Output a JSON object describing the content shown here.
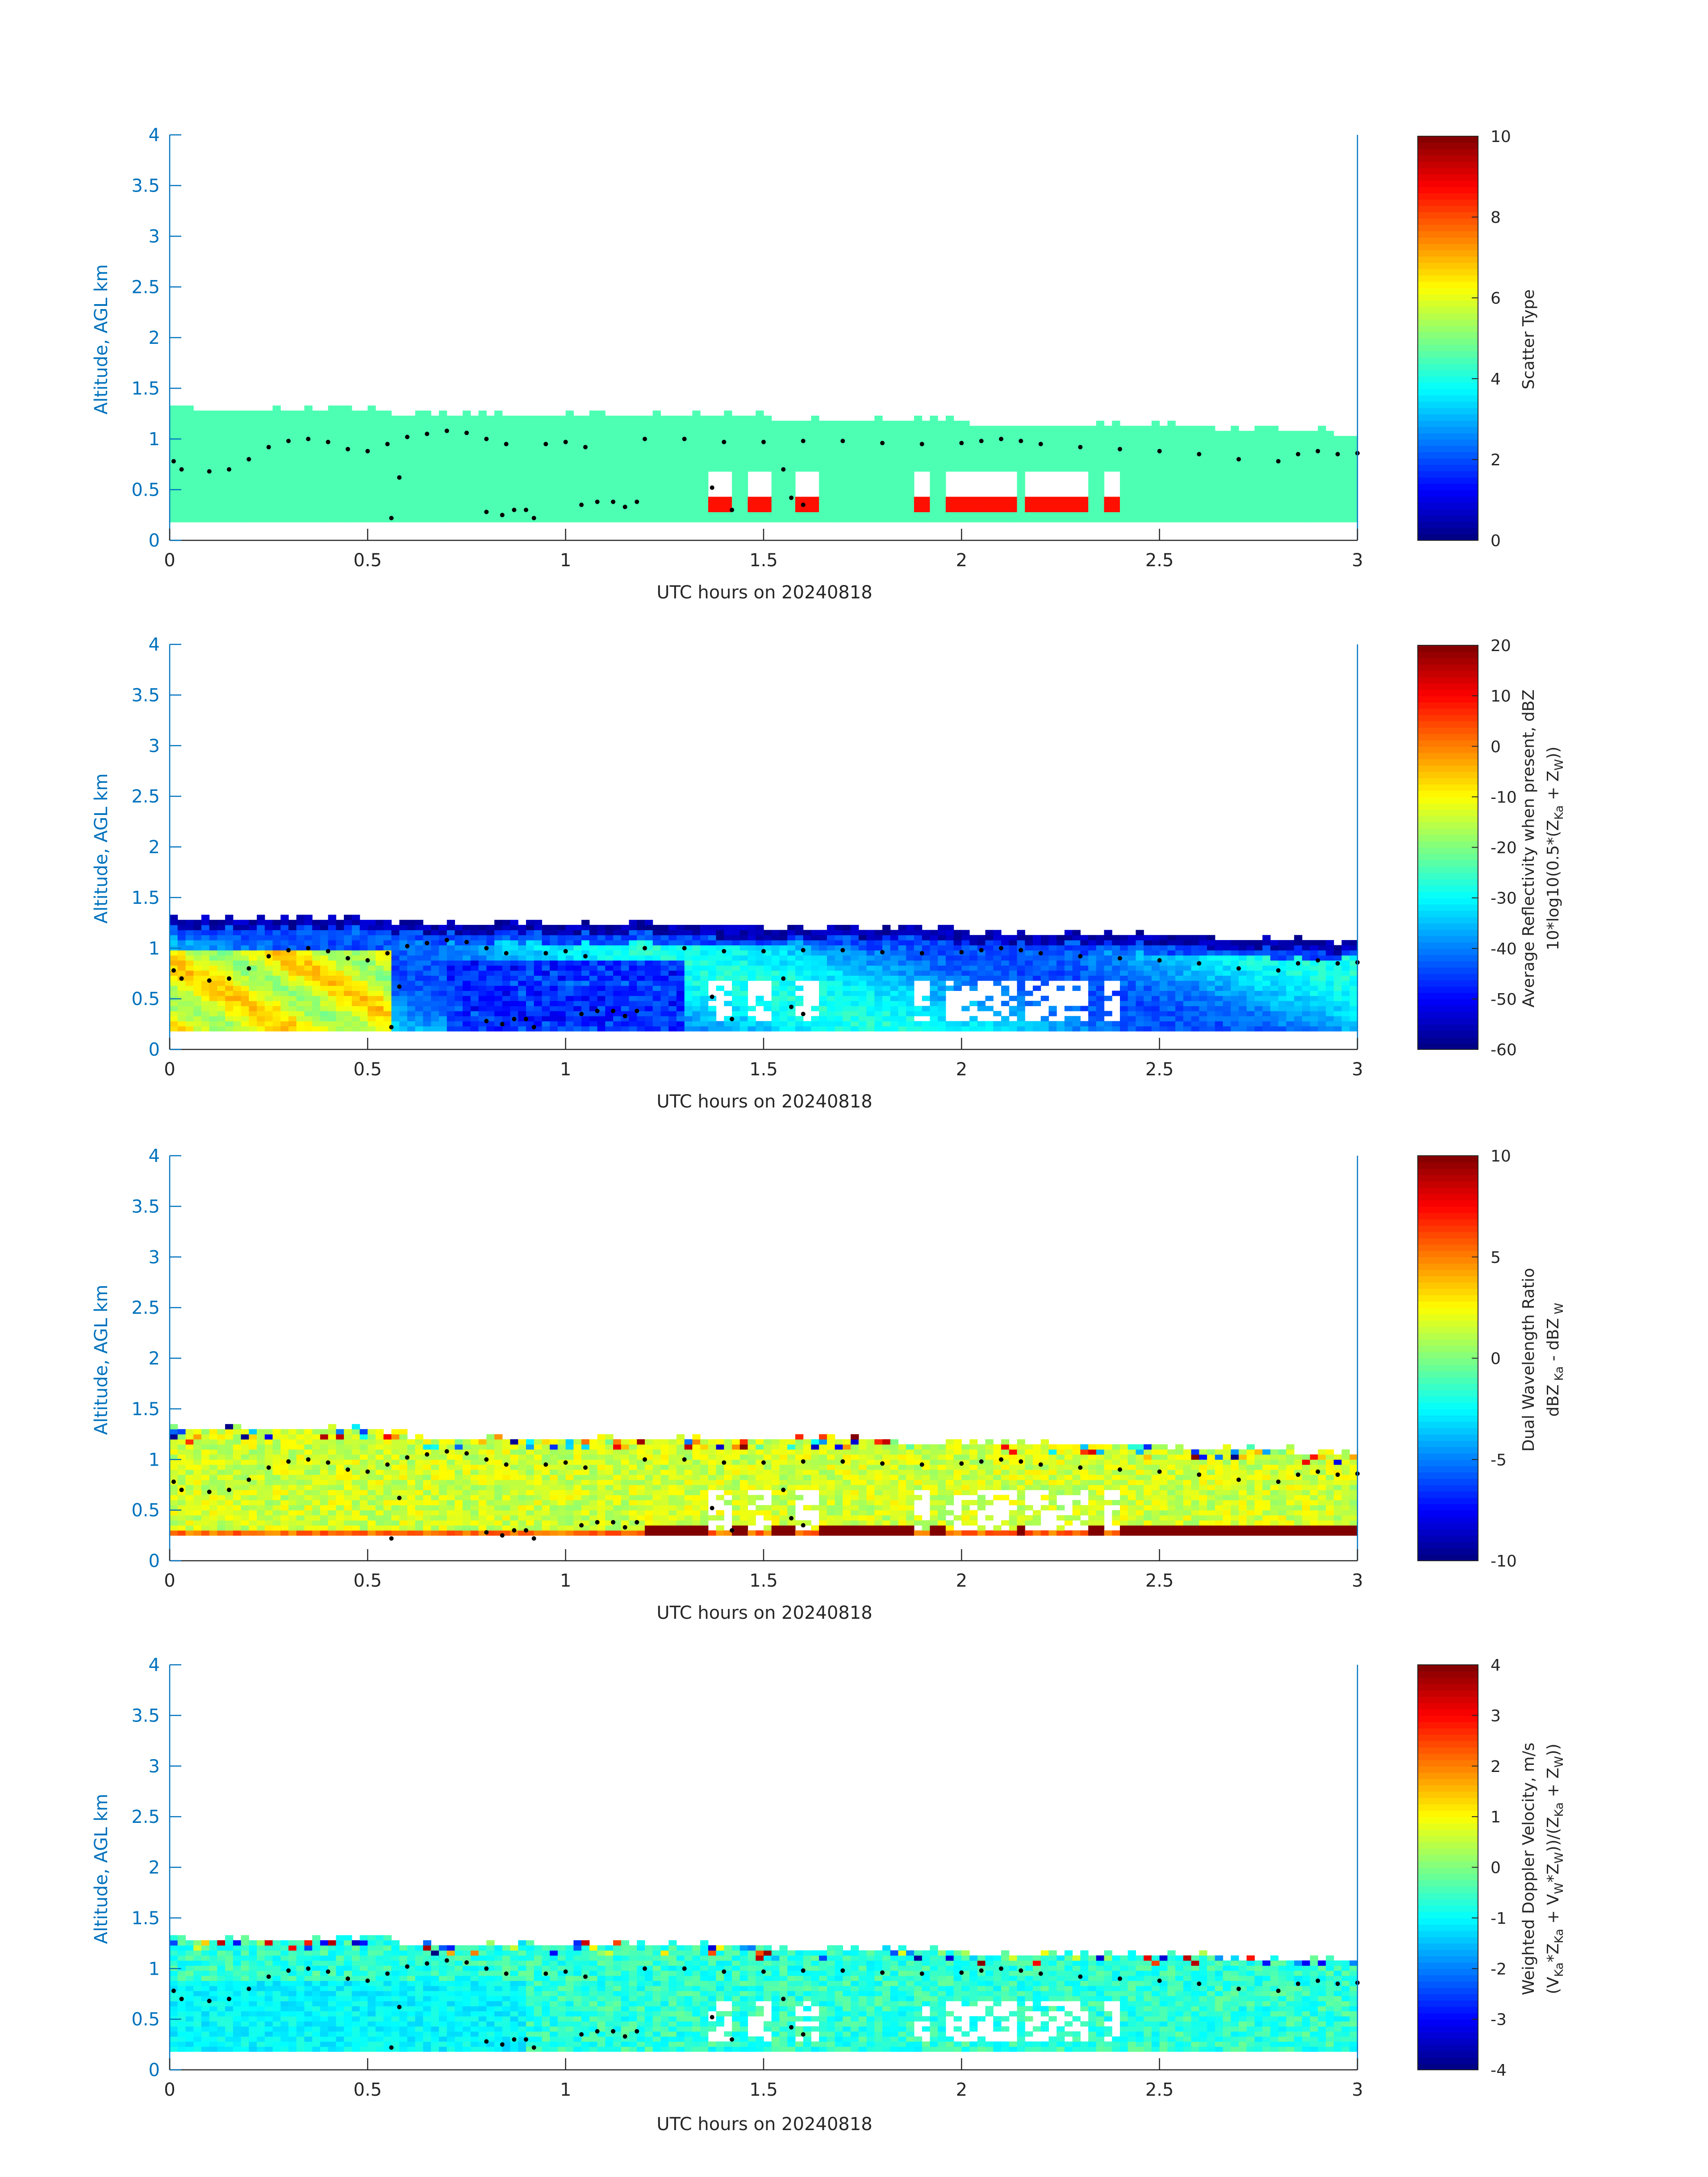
{
  "figure": {
    "xlabel": "UTC hours on 20240818",
    "ylabel": "Altitude, AGL km",
    "accent_color": "#0072BD"
  },
  "chart_data": [
    {
      "type": "heatmap",
      "xlabel": "UTC hours on 20240818",
      "ylabel": "Altitude, AGL km",
      "xlim": [
        0,
        3
      ],
      "ylim": [
        0,
        4
      ],
      "xticks": [
        "0",
        "0.5",
        "1",
        "1.5",
        "2",
        "2.5",
        "3"
      ],
      "yticks": [
        "0",
        "0.5",
        "1",
        "1.5",
        "2",
        "2.5",
        "3",
        "3.5",
        "4"
      ],
      "colorbar": {
        "label": "Scatter Type",
        "label2": "",
        "clim": [
          0,
          10
        ],
        "ticks": [
          "0",
          "2",
          "4",
          "6",
          "8",
          "10"
        ],
        "colormap": "jet"
      },
      "field": "scatter",
      "dominant_value": 4.5,
      "secondary_value": 8.6
    },
    {
      "type": "heatmap",
      "xlabel": "UTC hours on 20240818",
      "ylabel": "Altitude, AGL km",
      "xlim": [
        0,
        3
      ],
      "ylim": [
        0,
        4
      ],
      "xticks": [
        "0",
        "0.5",
        "1",
        "1.5",
        "2",
        "2.5",
        "3"
      ],
      "yticks": [
        "0",
        "0.5",
        "1",
        "1.5",
        "2",
        "2.5",
        "3",
        "3.5",
        "4"
      ],
      "colorbar": {
        "label": "Average Reflectivity when present, dBZ",
        "label2": "10*log10(0.5*(Zₖₐ + Zᴡ))",
        "clim": [
          -60,
          20
        ],
        "ticks": [
          "-60",
          "-50",
          "-40",
          "-30",
          "-20",
          "-10",
          "0",
          "10",
          "20"
        ],
        "colormap": "jet"
      },
      "field": "reflectivity"
    },
    {
      "type": "heatmap",
      "xlabel": "UTC hours on 20240818",
      "ylabel": "Altitude, AGL km",
      "xlim": [
        0,
        3
      ],
      "ylim": [
        0,
        4
      ],
      "xticks": [
        "0",
        "0.5",
        "1",
        "1.5",
        "2",
        "2.5",
        "3"
      ],
      "yticks": [
        "0",
        "0.5",
        "1",
        "1.5",
        "2",
        "2.5",
        "3",
        "3.5",
        "4"
      ],
      "colorbar": {
        "label": "Dual Wavelength Ratio",
        "label2": "dBZ Ka - dBZ W",
        "clim": [
          -10,
          10
        ],
        "ticks": [
          "-10",
          "-5",
          "0",
          "5",
          "10"
        ],
        "colormap": "jet"
      },
      "field": "dwr"
    },
    {
      "type": "heatmap",
      "xlabel": "UTC hours on 20240818",
      "ylabel": "Altitude, AGL km",
      "xlim": [
        0,
        3
      ],
      "ylim": [
        0,
        4
      ],
      "xticks": [
        "0",
        "0.5",
        "1",
        "1.5",
        "2",
        "2.5",
        "3"
      ],
      "yticks": [
        "0",
        "0.5",
        "1",
        "1.5",
        "2",
        "2.5",
        "3",
        "3.5",
        "4"
      ],
      "colorbar": {
        "label": "Weighted Doppler Velocity, m/s",
        "label2": "(VKa*ZKa + VW*ZW))/(ZKa + ZW))",
        "clim": [
          -4,
          4
        ],
        "ticks": [
          "-4",
          "-3",
          "-2",
          "-1",
          "0",
          "1",
          "2",
          "3",
          "4"
        ],
        "colormap": "jet"
      },
      "field": "velocity"
    }
  ],
  "cloud": {
    "base_km": 0.18,
    "top_km": [
      [
        0,
        1.25
      ],
      [
        0.5,
        1.28
      ],
      [
        0.6,
        1.2
      ],
      [
        1.0,
        1.2
      ],
      [
        1.5,
        1.18
      ],
      [
        2.0,
        1.13
      ],
      [
        2.5,
        1.1
      ],
      [
        2.8,
        1.06
      ],
      [
        3.0,
        1.02
      ]
    ],
    "gaps_x": [
      [
        1.36,
        1.42
      ],
      [
        1.46,
        1.52
      ],
      [
        1.58,
        1.64
      ],
      [
        1.88,
        1.92
      ],
      [
        1.96,
        2.14
      ],
      [
        2.16,
        2.32
      ],
      [
        2.36,
        2.39
      ]
    ]
  },
  "dots": {
    "main": [
      [
        0.01,
        0.78
      ],
      [
        0.03,
        0.7
      ],
      [
        0.1,
        0.68
      ],
      [
        0.15,
        0.7
      ],
      [
        0.2,
        0.8
      ],
      [
        0.25,
        0.92
      ],
      [
        0.3,
        0.98
      ],
      [
        0.35,
        1.0
      ],
      [
        0.4,
        0.97
      ],
      [
        0.45,
        0.9
      ],
      [
        0.5,
        0.88
      ],
      [
        0.55,
        0.95
      ],
      [
        0.6,
        1.02
      ],
      [
        0.65,
        1.05
      ],
      [
        0.7,
        1.08
      ],
      [
        0.75,
        1.06
      ],
      [
        0.8,
        1.0
      ],
      [
        0.85,
        0.95
      ],
      [
        0.95,
        0.95
      ],
      [
        1.0,
        0.97
      ],
      [
        1.05,
        0.92
      ],
      [
        1.2,
        1.0
      ],
      [
        1.3,
        1.0
      ],
      [
        1.4,
        0.97
      ],
      [
        1.5,
        0.97
      ],
      [
        1.6,
        0.98
      ],
      [
        1.7,
        0.98
      ],
      [
        1.8,
        0.96
      ],
      [
        1.9,
        0.95
      ],
      [
        2.0,
        0.96
      ],
      [
        2.05,
        0.98
      ],
      [
        2.1,
        1.0
      ],
      [
        2.15,
        0.98
      ],
      [
        2.2,
        0.95
      ],
      [
        2.3,
        0.92
      ],
      [
        2.4,
        0.9
      ],
      [
        2.5,
        0.88
      ],
      [
        2.6,
        0.85
      ],
      [
        2.7,
        0.8
      ],
      [
        2.8,
        0.78
      ],
      [
        2.85,
        0.85
      ],
      [
        2.9,
        0.88
      ],
      [
        2.95,
        0.85
      ],
      [
        3.0,
        0.86
      ]
    ],
    "low": [
      [
        0.56,
        0.22
      ],
      [
        0.58,
        0.62
      ],
      [
        0.8,
        0.28
      ],
      [
        0.84,
        0.25
      ],
      [
        0.87,
        0.3
      ],
      [
        0.9,
        0.3
      ],
      [
        0.92,
        0.22
      ],
      [
        1.04,
        0.35
      ],
      [
        1.08,
        0.38
      ],
      [
        1.12,
        0.38
      ],
      [
        1.15,
        0.33
      ],
      [
        1.18,
        0.38
      ],
      [
        1.37,
        0.52
      ],
      [
        1.42,
        0.3
      ],
      [
        1.55,
        0.7
      ],
      [
        1.57,
        0.42
      ],
      [
        1.6,
        0.35
      ]
    ]
  }
}
